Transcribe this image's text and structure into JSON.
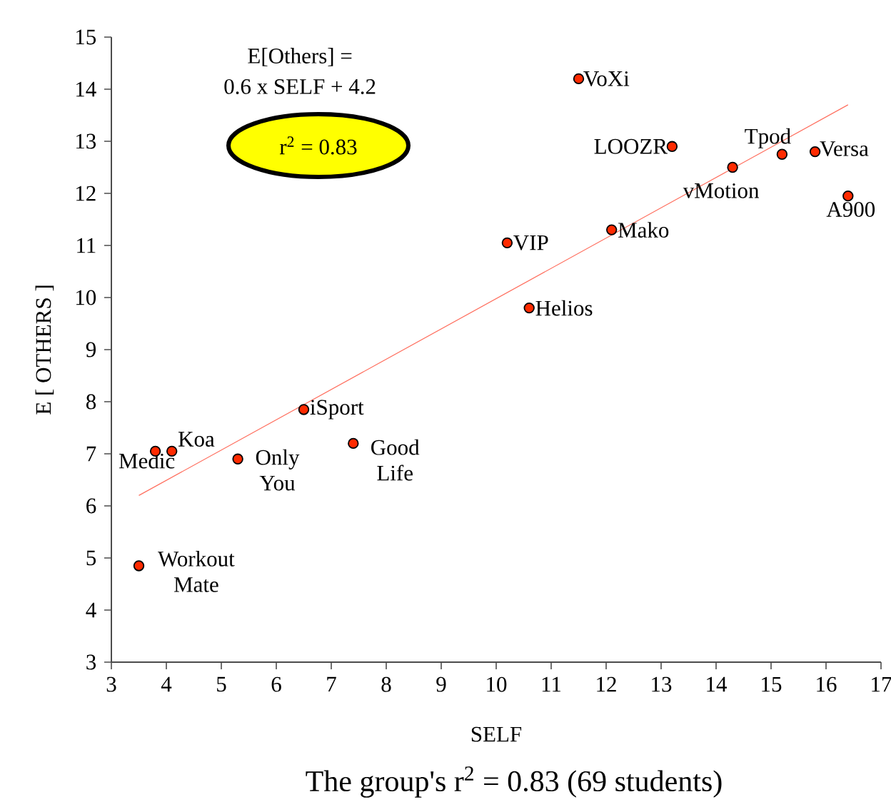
{
  "chart_data": {
    "type": "scatter",
    "xlabel": "SELF",
    "ylabel": "E [ OTHERS ]",
    "xlim": [
      3,
      17
    ],
    "ylim": [
      3,
      15
    ],
    "xticks": [
      3,
      4,
      5,
      6,
      7,
      8,
      9,
      10,
      11,
      12,
      13,
      14,
      15,
      16,
      17
    ],
    "yticks": [
      3,
      4,
      5,
      6,
      7,
      8,
      9,
      10,
      11,
      12,
      13,
      14,
      15
    ],
    "grid": false,
    "marker": "circle",
    "series": [
      {
        "color": "#ff2a00",
        "x": [
          11.5,
          13.2,
          14.3,
          15.2,
          15.8,
          16.4,
          12.1,
          10.2,
          10.6,
          6.5,
          4.1,
          3.8,
          5.3,
          7.4,
          3.5
        ],
        "values": [
          14.2,
          12.9,
          12.5,
          12.75,
          12.8,
          11.95,
          11.3,
          11.05,
          9.8,
          7.85,
          7.05,
          7.05,
          6.9,
          7.2,
          4.85
        ]
      },
      {
        "type": "line",
        "color": "#ff7060",
        "line_style": "solid",
        "marker": "none",
        "x": [
          3.5,
          16.4
        ],
        "values": [
          6.2,
          13.7
        ]
      }
    ],
    "annotations": [
      {
        "text": "VoXi",
        "x": 11.5,
        "y": 14.2
      },
      {
        "text": "LOOZR",
        "x": 13.2,
        "y": 12.9
      },
      {
        "text": "vMotion",
        "x": 14.3,
        "y": 12.5
      },
      {
        "text": "Tpod",
        "x": 15.2,
        "y": 12.75
      },
      {
        "text": "Versa",
        "x": 15.8,
        "y": 12.8
      },
      {
        "text": "A900",
        "x": 16.4,
        "y": 11.95
      },
      {
        "text": "Mako",
        "x": 12.1,
        "y": 11.3
      },
      {
        "text": "VIP",
        "x": 10.2,
        "y": 11.05
      },
      {
        "text": "Helios",
        "x": 10.6,
        "y": 9.8
      },
      {
        "text": "iSport",
        "x": 6.5,
        "y": 7.85
      },
      {
        "text": "Koa",
        "x": 4.1,
        "y": 7.05
      },
      {
        "text": "Medic",
        "x": 3.8,
        "y": 7.05
      },
      {
        "text": "Only You",
        "x": 5.3,
        "y": 6.9
      },
      {
        "text": "Good Life",
        "x": 7.4,
        "y": 7.2
      },
      {
        "text": "Workout Mate",
        "x": 3.5,
        "y": 4.85
      },
      "E[Others] =",
      "0.6 x SELF + 4.2",
      "r$^{2}$ = 0.83",
      "The group's r$^{2}$ = 0.83 (69 students)"
    ]
  }
}
